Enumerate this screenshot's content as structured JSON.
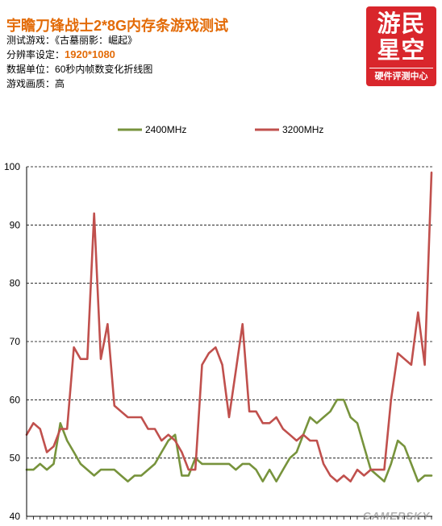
{
  "header": {
    "info": [
      {
        "label": "测试游戏：",
        "value": "《古墓丽影：崛起》"
      },
      {
        "label": "分辨率设定：",
        "value": "1920*1080"
      },
      {
        "label": "数据单位：",
        "value": "60秒内帧数变化折线图"
      },
      {
        "label": "游戏画质：",
        "value": "高"
      }
    ]
  },
  "logo": {
    "line1": "游民",
    "line2": "星空",
    "subtitle": "硬件评测中心"
  },
  "watermark": "GAMERSKY",
  "colors": {
    "title": "#E36C09",
    "highlight": "#E36C09",
    "logo_bg": "#D9262C"
  },
  "chart_data": {
    "type": "line",
    "title": "宇瞻刀锋战士2*8G内存条游戏测试",
    "ylim": [
      40,
      100
    ],
    "yticks": [
      40,
      50,
      60,
      70,
      80,
      90,
      100
    ],
    "grid": true,
    "legend": "top",
    "series": [
      {
        "name": "2400MHz",
        "color": "#77933C",
        "values": [
          48,
          48,
          49,
          48,
          49,
          56,
          53,
          51,
          49,
          48,
          47,
          48,
          48,
          48,
          47,
          46,
          47,
          47,
          48,
          49,
          51,
          53,
          54,
          47,
          47,
          50,
          49,
          49,
          49,
          49,
          49,
          48,
          49,
          49,
          48,
          46,
          48,
          46,
          48,
          50,
          51,
          54,
          57,
          56,
          57,
          58,
          60,
          60,
          57,
          56,
          52,
          48,
          47,
          46,
          49,
          53,
          52,
          49,
          46,
          47,
          47
        ]
      },
      {
        "name": "3200MHz",
        "color": "#C0504D",
        "values": [
          54,
          56,
          55,
          51,
          52,
          55,
          55,
          69,
          67,
          67,
          92,
          67,
          73,
          59,
          58,
          57,
          57,
          57,
          55,
          55,
          53,
          54,
          53,
          51,
          48,
          48,
          66,
          68,
          69,
          66,
          57,
          65,
          73,
          58,
          58,
          56,
          56,
          57,
          55,
          54,
          53,
          54,
          53,
          53,
          49,
          47,
          46,
          47,
          46,
          48,
          47,
          48,
          48,
          48,
          60,
          68,
          67,
          66,
          75,
          66,
          99
        ]
      }
    ]
  }
}
